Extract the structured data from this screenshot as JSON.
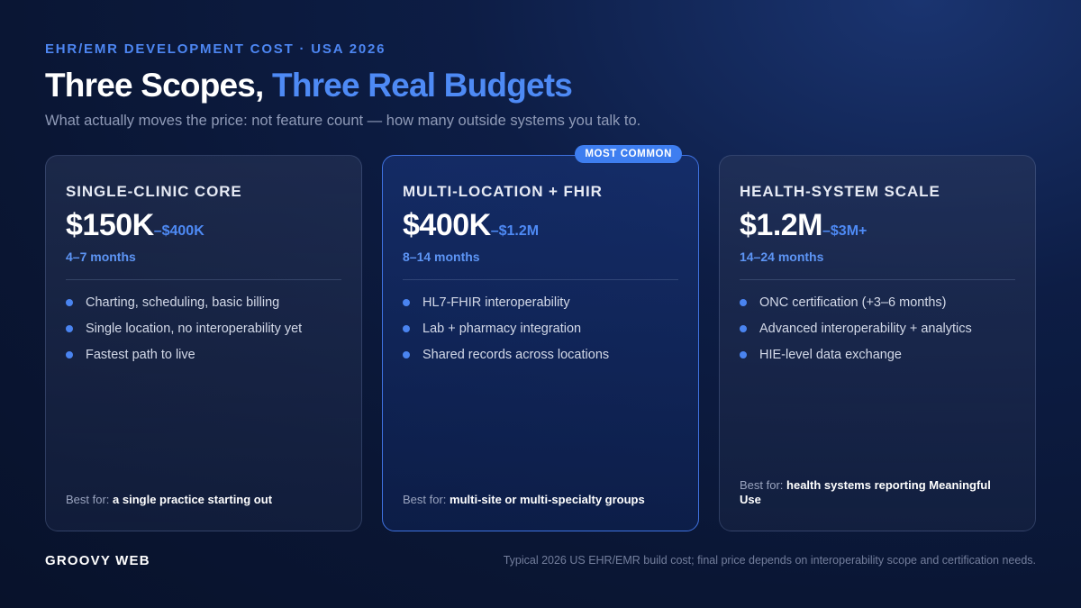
{
  "header": {
    "eyebrow": "EHR/EMR DEVELOPMENT COST · USA 2026",
    "title_main": "Three Scopes, ",
    "title_accent": "Three Real Budgets",
    "subtitle": "What actually moves the price: not feature count — how many outside systems you talk to."
  },
  "cards": [
    {
      "name": "SINGLE-CLINIC CORE",
      "price_low": "$150K",
      "price_high": "–$400K",
      "duration": "4–7 months",
      "features": [
        "Charting, scheduling, basic billing",
        "Single location, no interoperability yet",
        "Fastest path to live"
      ],
      "best_for_label": "Best for: ",
      "best_for_value": "a single practice starting out"
    },
    {
      "badge": "MOST COMMON",
      "name": "MULTI-LOCATION + FHIR",
      "price_low": "$400K",
      "price_high": "–$1.2M",
      "duration": "8–14 months",
      "features": [
        "HL7-FHIR interoperability",
        "Lab + pharmacy integration",
        "Shared records across locations"
      ],
      "best_for_label": "Best for: ",
      "best_for_value": "multi-site or multi-specialty groups"
    },
    {
      "name": "HEALTH-SYSTEM SCALE",
      "price_low": "$1.2M",
      "price_high": "–$3M+",
      "duration": "14–24 months",
      "features": [
        "ONC certification (+3–6 months)",
        "Advanced interoperability + analytics",
        "HIE-level data exchange"
      ],
      "best_for_label": "Best for: ",
      "best_for_value": "health systems reporting Meaningful Use"
    }
  ],
  "footer": {
    "brand": "GROOVY WEB",
    "note": "Typical 2026 US EHR/EMR build cost; final price depends on interoperability scope and certification needs."
  }
}
